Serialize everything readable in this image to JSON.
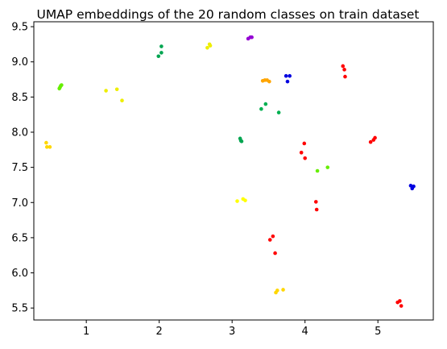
{
  "chart_data": {
    "type": "scatter",
    "title": "UMAP embeddings of the 20 random classes on train dataset",
    "xlabel": "",
    "ylabel": "",
    "xlim": [
      0.28,
      5.76
    ],
    "ylim": [
      5.33,
      9.57
    ],
    "xticks": [
      1,
      2,
      3,
      4,
      5
    ],
    "yticks": [
      5.5,
      6.0,
      6.5,
      7.0,
      7.5,
      8.0,
      8.5,
      9.0,
      9.5
    ],
    "ytick_labels": [
      "5.5",
      "6.0",
      "6.5",
      "7.0",
      "7.5",
      "8.0",
      "8.5",
      "9.0",
      "9.5"
    ],
    "grid": false,
    "series": [
      {
        "color": "#ffd700",
        "points": [
          [
            0.45,
            7.85
          ],
          [
            0.46,
            7.79
          ],
          [
            0.5,
            7.79
          ]
        ]
      },
      {
        "color": "#66ee00",
        "points": [
          [
            0.63,
            8.62
          ],
          [
            0.64,
            8.64
          ],
          [
            0.65,
            8.66
          ],
          [
            0.66,
            8.67
          ]
        ]
      },
      {
        "color": "#eeee00",
        "points": [
          [
            1.27,
            8.59
          ],
          [
            1.42,
            8.61
          ],
          [
            1.49,
            8.45
          ]
        ]
      },
      {
        "color": "#00a550",
        "points": [
          [
            1.99,
            9.08
          ],
          [
            2.03,
            9.13
          ],
          [
            2.03,
            9.22
          ]
        ]
      },
      {
        "color": "#eeee00",
        "points": [
          [
            2.66,
            9.2
          ],
          [
            2.69,
            9.25
          ],
          [
            2.7,
            9.23
          ]
        ]
      },
      {
        "color": "#9400d3",
        "points": [
          [
            3.22,
            9.33
          ],
          [
            3.25,
            9.35
          ],
          [
            3.27,
            9.35
          ]
        ]
      },
      {
        "color": "#00a550",
        "points": [
          [
            3.11,
            7.91
          ],
          [
            3.12,
            7.88
          ],
          [
            3.13,
            7.87
          ]
        ]
      },
      {
        "color": "#ffa500",
        "points": [
          [
            3.42,
            8.73
          ],
          [
            3.45,
            8.74
          ],
          [
            3.48,
            8.74
          ],
          [
            3.51,
            8.72
          ]
        ]
      },
      {
        "color": "#00b050",
        "points": [
          [
            3.4,
            8.33
          ],
          [
            3.46,
            8.4
          ],
          [
            3.64,
            8.28
          ]
        ]
      },
      {
        "color": "#0000e0",
        "points": [
          [
            3.74,
            8.8
          ],
          [
            3.76,
            8.72
          ],
          [
            3.79,
            8.8
          ]
        ]
      },
      {
        "color": "#ffff00",
        "points": [
          [
            3.07,
            7.02
          ],
          [
            3.15,
            7.05
          ],
          [
            3.18,
            7.03
          ]
        ]
      },
      {
        "color": "#ff0000",
        "points": [
          [
            3.52,
            6.47
          ],
          [
            3.56,
            6.52
          ],
          [
            3.59,
            6.28
          ]
        ]
      },
      {
        "color": "#ffd700",
        "points": [
          [
            3.6,
            5.72
          ],
          [
            3.62,
            5.75
          ],
          [
            3.7,
            5.76
          ]
        ]
      },
      {
        "color": "#ff0000",
        "points": [
          [
            3.95,
            7.71
          ],
          [
            3.99,
            7.84
          ],
          [
            4.0,
            7.63
          ]
        ]
      },
      {
        "color": "#66ee00",
        "points": [
          [
            4.17,
            7.45
          ],
          [
            4.31,
            7.5
          ]
        ]
      },
      {
        "color": "#ff0000",
        "points": [
          [
            4.15,
            7.01
          ],
          [
            4.16,
            6.9
          ]
        ]
      },
      {
        "color": "#ff0000",
        "points": [
          [
            4.52,
            8.94
          ],
          [
            4.54,
            8.89
          ],
          [
            4.55,
            8.79
          ]
        ]
      },
      {
        "color": "#ff0000",
        "points": [
          [
            4.9,
            7.86
          ],
          [
            4.94,
            7.89
          ],
          [
            4.96,
            7.92
          ]
        ]
      },
      {
        "color": "#0000e0",
        "points": [
          [
            5.45,
            7.24
          ],
          [
            5.47,
            7.2
          ],
          [
            5.49,
            7.23
          ]
        ]
      },
      {
        "color": "#ff0000",
        "points": [
          [
            5.27,
            5.58
          ],
          [
            5.3,
            5.6
          ],
          [
            5.32,
            5.53
          ]
        ]
      }
    ]
  }
}
